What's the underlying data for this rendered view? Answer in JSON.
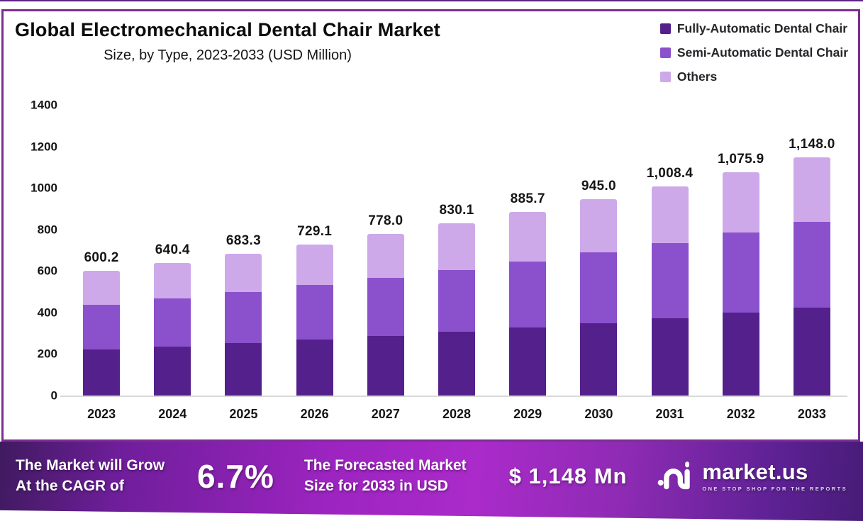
{
  "frame": {
    "border_color": "#7c2d92",
    "top_strip_color": "#5f2183"
  },
  "header": {
    "title": "Global Electromechanical Dental Chair Market",
    "subtitle": "Size, by Type, 2023-2033 (USD Million)"
  },
  "legend": {
    "items": [
      {
        "label": "Fully-Automatic Dental Chair",
        "color": "#54208c"
      },
      {
        "label": "Semi-Automatic Dental Chair",
        "color": "#8b50cc"
      },
      {
        "label": "Others",
        "color": "#cda9ea"
      }
    ]
  },
  "chart_data": {
    "type": "bar",
    "stacked": true,
    "title": "Global Electromechanical Dental Chair Market",
    "subtitle": "Size, by Type, 2023-2033 (USD Million)",
    "categories": [
      "2023",
      "2024",
      "2025",
      "2026",
      "2027",
      "2028",
      "2029",
      "2030",
      "2031",
      "2032",
      "2033"
    ],
    "series": [
      {
        "name": "Fully-Automatic Dental Chair",
        "color": "#54208c",
        "values": [
          222,
          237,
          253,
          270,
          288,
          307,
          328,
          350,
          373,
          398,
          425
        ]
      },
      {
        "name": "Semi-Automatic Dental Chair",
        "color": "#8b50cc",
        "values": [
          216,
          231,
          246,
          262,
          280,
          299,
          319,
          340,
          363,
          387,
          413
        ]
      },
      {
        "name": "Others",
        "color": "#cda9ea",
        "values": [
          162,
          172,
          184,
          197,
          210,
          224,
          239,
          255,
          272,
          290,
          310
        ]
      }
    ],
    "totals": [
      600.2,
      640.4,
      683.3,
      729.1,
      778.0,
      830.1,
      885.7,
      945.0,
      1008.4,
      1075.9,
      1148.0
    ],
    "total_labels": [
      "600.2",
      "640.4",
      "683.3",
      "729.1",
      "778.0",
      "830.1",
      "885.7",
      "945.0",
      "1,008.4",
      "1,075.9",
      "1,148.0"
    ],
    "xlabel": "",
    "ylabel": "",
    "ylim": [
      0,
      1400
    ],
    "yticks": [
      0,
      200,
      400,
      600,
      800,
      1000,
      1200,
      1400
    ],
    "grid": false,
    "legend_position": "top-right"
  },
  "banner": {
    "grow_line1": "The Market will Grow",
    "grow_line2": "At the CAGR of",
    "cagr": "6.7%",
    "forecast_line1": "The Forecasted Market",
    "forecast_line2": "Size for 2033 in USD",
    "forecast_value": "$ 1,148 Mn",
    "brand_name": "market.us",
    "brand_tagline": "ONE STOP SHOP FOR THE REPORTS",
    "gradient_colors": [
      "#401a60",
      "#9c24c0",
      "#aa2bca",
      "#471c77"
    ]
  }
}
